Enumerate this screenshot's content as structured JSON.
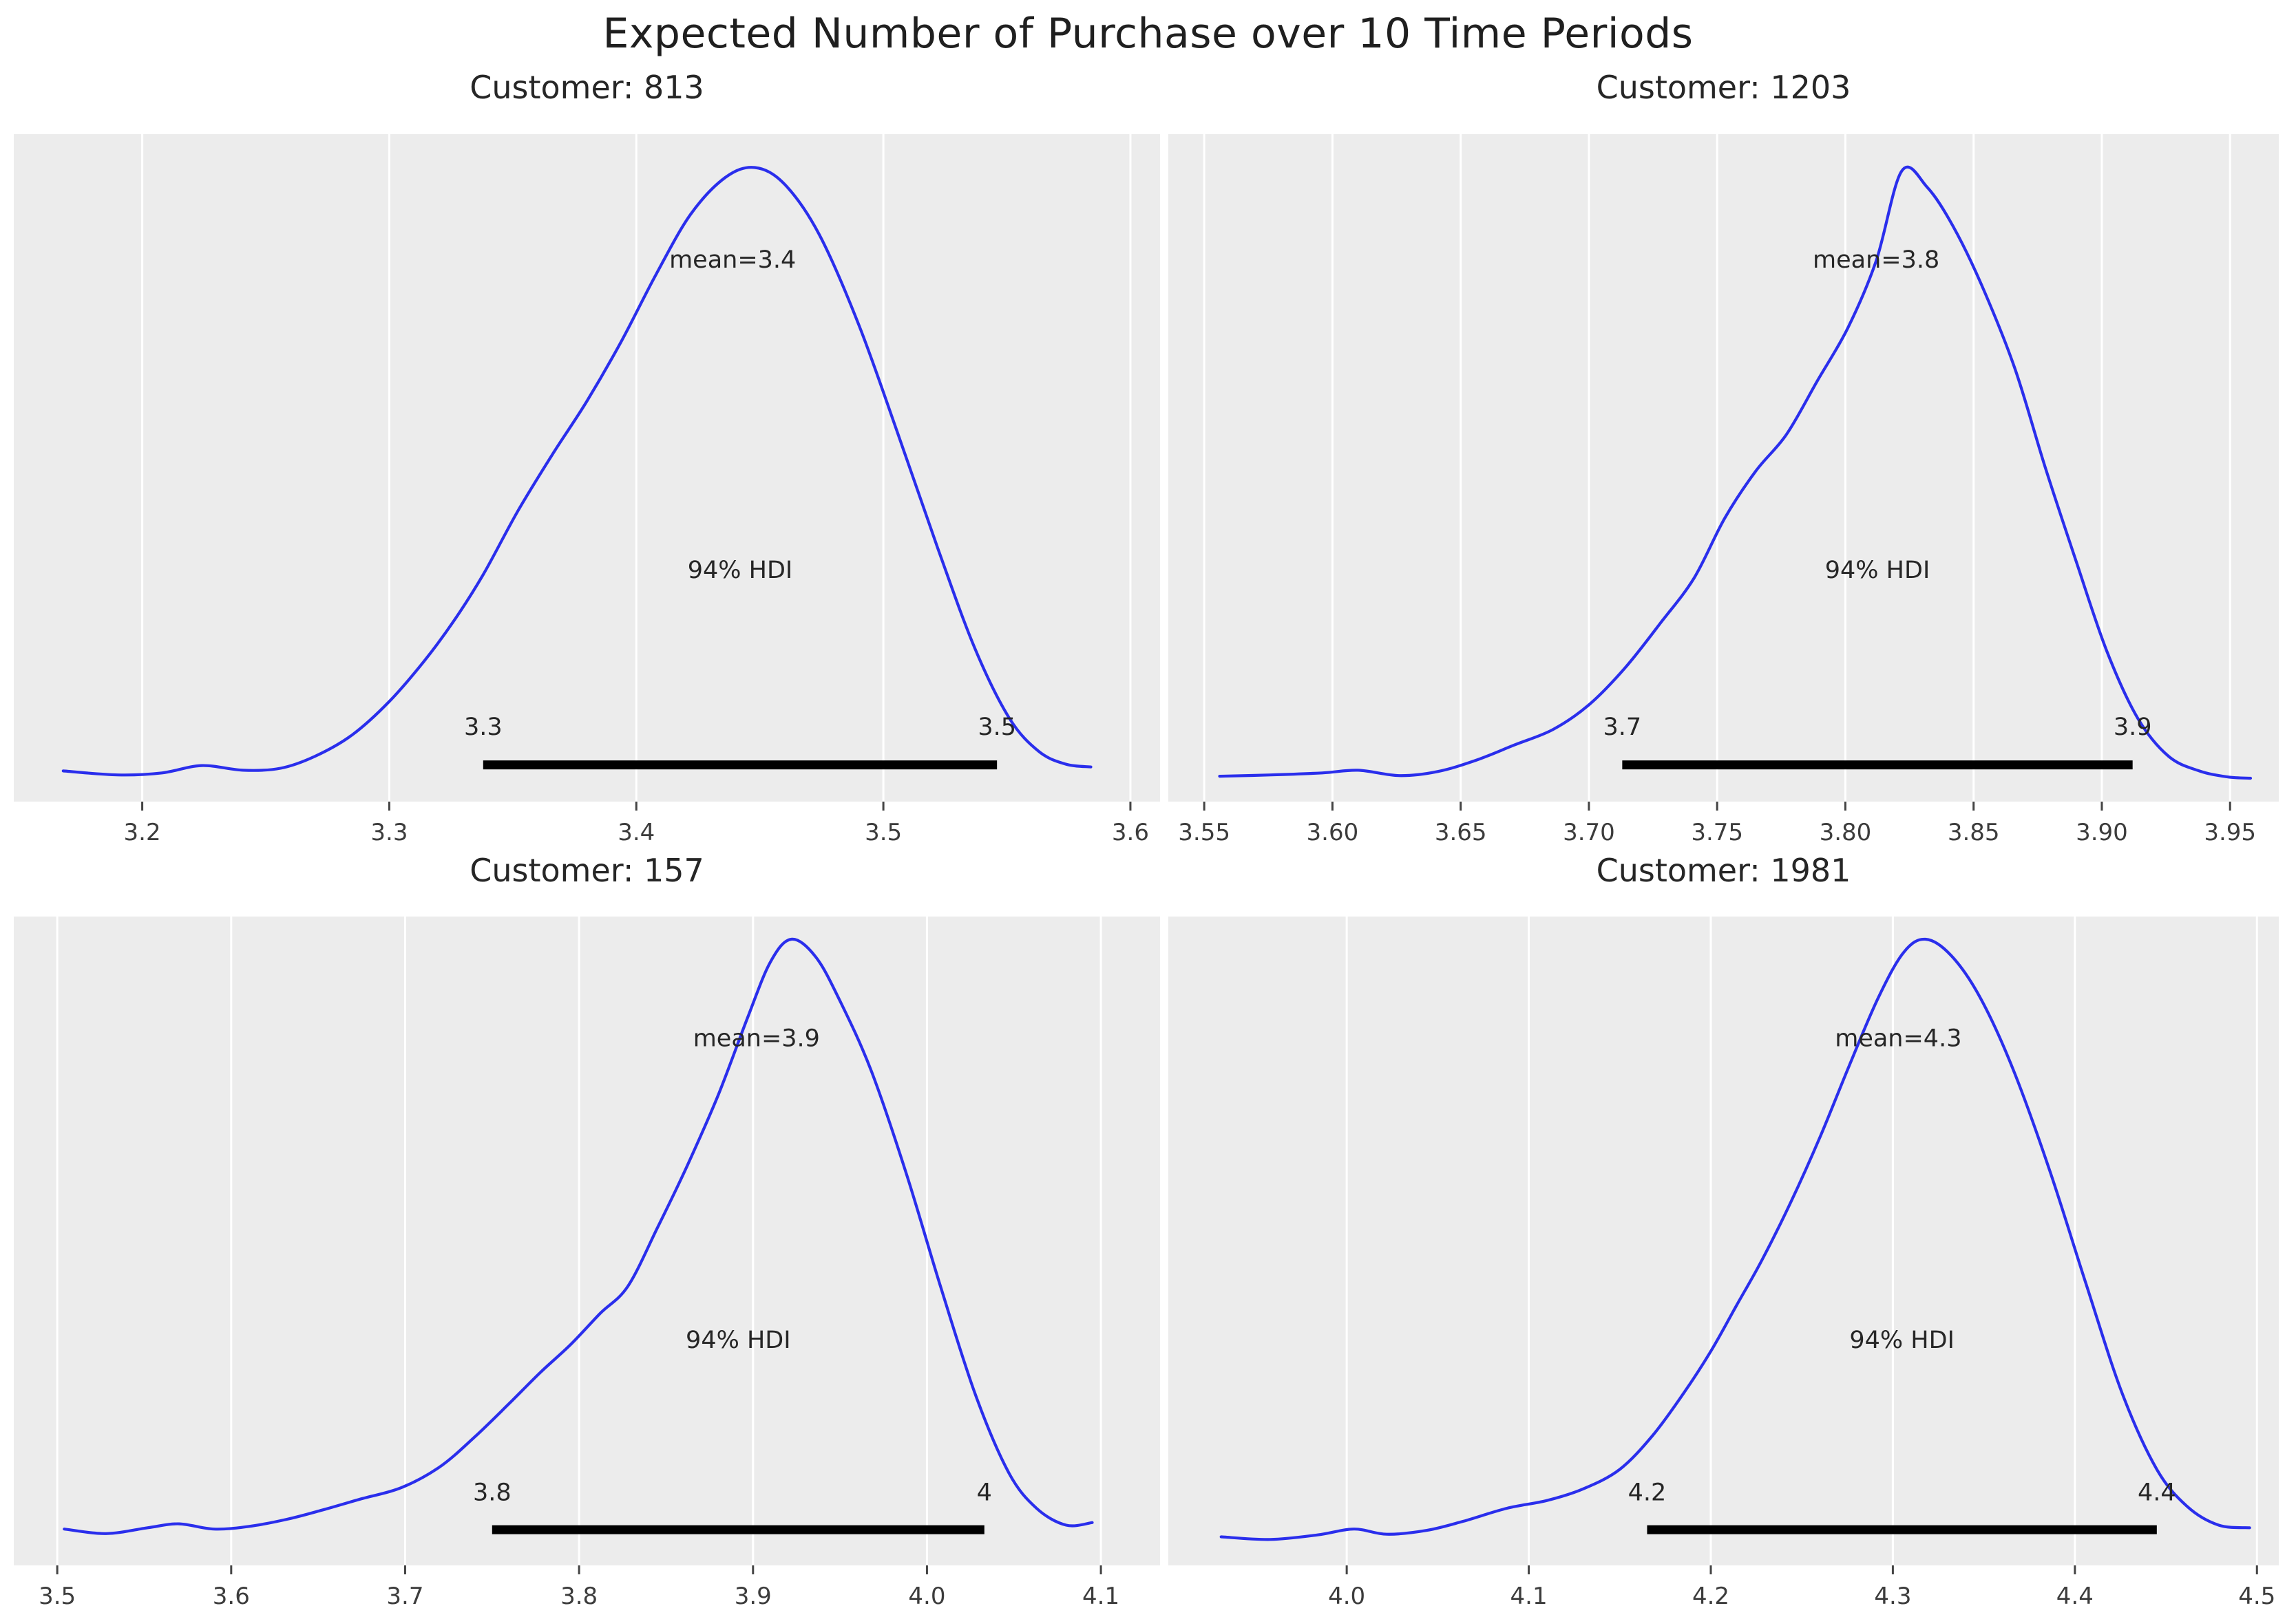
{
  "title": "Expected Number of Purchase over 10 Time Periods",
  "colors": {
    "figure_bg": "#ffffff",
    "plot_bg": "#ececec",
    "grid": "#ffffff",
    "curve": "#2a2eec",
    "hdi_bar": "#000000",
    "annotation_text": "#262626",
    "tick_text": "#3c3c3c",
    "tick_mark": "#444444"
  },
  "chart_data": [
    {
      "type": "line",
      "kind": "posterior-kde",
      "title": "Customer: 813",
      "mean": 3.4,
      "mean_label": "mean=3.4",
      "mean_label_x": 3.439,
      "hdi_label": "94% HDI",
      "hdi": [
        3.338,
        3.546
      ],
      "hdi_lower_label": "3.3",
      "hdi_upper_label": "3.5",
      "xlim": [
        3.148,
        3.612
      ],
      "x_ticks": [
        3.2,
        3.3,
        3.4,
        3.5,
        3.6
      ],
      "x_tick_labels": [
        "3.2",
        "3.3",
        "3.4",
        "3.5",
        "3.6"
      ],
      "grid": "vertical-only",
      "legend": "none",
      "curve": [
        [
          3.168,
          0.046
        ],
        [
          3.19,
          0.04
        ],
        [
          3.208,
          0.043
        ],
        [
          3.224,
          0.054
        ],
        [
          3.241,
          0.047
        ],
        [
          3.256,
          0.05
        ],
        [
          3.27,
          0.068
        ],
        [
          3.285,
          0.1
        ],
        [
          3.3,
          0.15
        ],
        [
          3.314,
          0.21
        ],
        [
          3.326,
          0.27
        ],
        [
          3.338,
          0.34
        ],
        [
          3.352,
          0.435
        ],
        [
          3.366,
          0.52
        ],
        [
          3.38,
          0.6
        ],
        [
          3.394,
          0.69
        ],
        [
          3.408,
          0.79
        ],
        [
          3.422,
          0.88
        ],
        [
          3.436,
          0.935
        ],
        [
          3.448,
          0.95
        ],
        [
          3.46,
          0.925
        ],
        [
          3.474,
          0.85
        ],
        [
          3.49,
          0.715
        ],
        [
          3.506,
          0.55
        ],
        [
          3.522,
          0.38
        ],
        [
          3.537,
          0.23
        ],
        [
          3.551,
          0.125
        ],
        [
          3.563,
          0.075
        ],
        [
          3.574,
          0.056
        ],
        [
          3.584,
          0.052
        ]
      ]
    },
    {
      "type": "line",
      "kind": "posterior-kde",
      "title": "Customer: 1203",
      "mean": 3.8,
      "mean_label": "mean=3.8",
      "mean_label_x": 3.812,
      "hdi_label": "94% HDI",
      "hdi": [
        3.713,
        3.912
      ],
      "hdi_lower_label": "3.7",
      "hdi_upper_label": "3.9",
      "xlim": [
        3.536,
        3.969
      ],
      "x_ticks": [
        3.55,
        3.6,
        3.65,
        3.7,
        3.75,
        3.8,
        3.85,
        3.9,
        3.95
      ],
      "x_tick_labels": [
        "3.55",
        "3.60",
        "3.65",
        "3.70",
        "3.75",
        "3.80",
        "3.85",
        "3.90",
        "3.95"
      ],
      "grid": "vertical-only",
      "legend": "none",
      "curve": [
        [
          3.556,
          0.038
        ],
        [
          3.576,
          0.04
        ],
        [
          3.596,
          0.043
        ],
        [
          3.61,
          0.047
        ],
        [
          3.626,
          0.039
        ],
        [
          3.641,
          0.045
        ],
        [
          3.656,
          0.062
        ],
        [
          3.671,
          0.085
        ],
        [
          3.686,
          0.108
        ],
        [
          3.7,
          0.145
        ],
        [
          3.714,
          0.2
        ],
        [
          3.728,
          0.268
        ],
        [
          3.741,
          0.335
        ],
        [
          3.753,
          0.425
        ],
        [
          3.765,
          0.495
        ],
        [
          3.777,
          0.55
        ],
        [
          3.789,
          0.63
        ],
        [
          3.801,
          0.71
        ],
        [
          3.812,
          0.81
        ],
        [
          3.822,
          0.945
        ],
        [
          3.832,
          0.92
        ],
        [
          3.842,
          0.862
        ],
        [
          3.853,
          0.775
        ],
        [
          3.866,
          0.65
        ],
        [
          3.878,
          0.5
        ],
        [
          3.89,
          0.36
        ],
        [
          3.902,
          0.225
        ],
        [
          3.914,
          0.125
        ],
        [
          3.926,
          0.068
        ],
        [
          3.938,
          0.046
        ],
        [
          3.949,
          0.037
        ],
        [
          3.958,
          0.035
        ]
      ]
    },
    {
      "type": "line",
      "kind": "posterior-kde",
      "title": "Customer: 157",
      "mean": 3.9,
      "mean_label": "mean=3.9",
      "mean_label_x": 3.902,
      "hdi_label": "94% HDI",
      "hdi": [
        3.75,
        4.033
      ],
      "hdi_lower_label": "3.8",
      "hdi_upper_label": "4",
      "xlim": [
        3.475,
        4.134
      ],
      "x_ticks": [
        3.5,
        3.6,
        3.7,
        3.8,
        3.9,
        4.0,
        4.1
      ],
      "x_tick_labels": [
        "3.5",
        "3.6",
        "3.7",
        "3.8",
        "3.9",
        "4.0",
        "4.1"
      ],
      "grid": "vertical-only",
      "legend": "none",
      "curve": [
        [
          3.504,
          0.056
        ],
        [
          3.528,
          0.049
        ],
        [
          3.552,
          0.058
        ],
        [
          3.57,
          0.064
        ],
        [
          3.59,
          0.056
        ],
        [
          3.61,
          0.06
        ],
        [
          3.632,
          0.071
        ],
        [
          3.652,
          0.085
        ],
        [
          3.674,
          0.102
        ],
        [
          3.698,
          0.12
        ],
        [
          3.72,
          0.152
        ],
        [
          3.74,
          0.198
        ],
        [
          3.76,
          0.25
        ],
        [
          3.778,
          0.298
        ],
        [
          3.795,
          0.34
        ],
        [
          3.812,
          0.388
        ],
        [
          3.828,
          0.43
        ],
        [
          3.845,
          0.52
        ],
        [
          3.862,
          0.615
        ],
        [
          3.88,
          0.725
        ],
        [
          3.897,
          0.845
        ],
        [
          3.91,
          0.93
        ],
        [
          3.922,
          0.965
        ],
        [
          3.936,
          0.938
        ],
        [
          3.95,
          0.87
        ],
        [
          3.968,
          0.762
        ],
        [
          3.988,
          0.605
        ],
        [
          4.008,
          0.428
        ],
        [
          4.028,
          0.262
        ],
        [
          4.047,
          0.143
        ],
        [
          4.063,
          0.088
        ],
        [
          4.08,
          0.062
        ],
        [
          4.095,
          0.066
        ]
      ]
    },
    {
      "type": "line",
      "kind": "posterior-kde",
      "title": "Customer: 1981",
      "mean": 4.3,
      "mean_label": "mean=4.3",
      "mean_label_x": 4.303,
      "hdi_label": "94% HDI",
      "hdi": [
        4.165,
        4.445
      ],
      "hdi_lower_label": "4.2",
      "hdi_upper_label": "4.4",
      "xlim": [
        3.902,
        4.512
      ],
      "x_ticks": [
        4.0,
        4.1,
        4.2,
        4.3,
        4.4,
        4.5
      ],
      "x_tick_labels": [
        "4.0",
        "4.1",
        "4.2",
        "4.3",
        "4.4",
        "4.5"
      ],
      "grid": "vertical-only",
      "legend": "none",
      "curve": [
        [
          3.931,
          0.044
        ],
        [
          3.958,
          0.04
        ],
        [
          3.984,
          0.047
        ],
        [
          4.004,
          0.056
        ],
        [
          4.022,
          0.048
        ],
        [
          4.044,
          0.054
        ],
        [
          4.064,
          0.068
        ],
        [
          4.088,
          0.088
        ],
        [
          4.11,
          0.1
        ],
        [
          4.13,
          0.118
        ],
        [
          4.15,
          0.148
        ],
        [
          4.168,
          0.2
        ],
        [
          4.185,
          0.265
        ],
        [
          4.2,
          0.33
        ],
        [
          4.214,
          0.4
        ],
        [
          4.228,
          0.47
        ],
        [
          4.244,
          0.56
        ],
        [
          4.26,
          0.66
        ],
        [
          4.276,
          0.77
        ],
        [
          4.292,
          0.875
        ],
        [
          4.306,
          0.945
        ],
        [
          4.318,
          0.965
        ],
        [
          4.332,
          0.94
        ],
        [
          4.348,
          0.875
        ],
        [
          4.366,
          0.765
        ],
        [
          4.386,
          0.61
        ],
        [
          4.406,
          0.435
        ],
        [
          4.426,
          0.265
        ],
        [
          4.445,
          0.148
        ],
        [
          4.462,
          0.09
        ],
        [
          4.479,
          0.062
        ],
        [
          4.496,
          0.058
        ]
      ]
    }
  ]
}
